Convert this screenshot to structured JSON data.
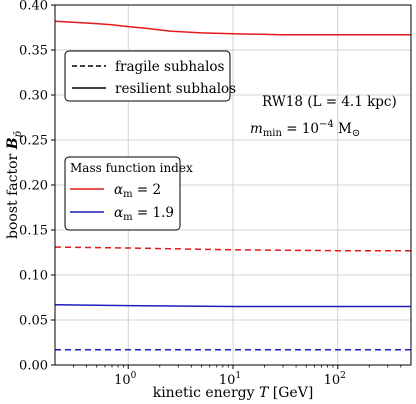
{
  "chart_data": {
    "type": "line",
    "xscale": "log",
    "xlim": [
      0.2,
      500
    ],
    "ylim": [
      0.0,
      0.4
    ],
    "xlabel": "kinetic energy T [GeV]",
    "ylabel": "boost factor B_p̄",
    "grid": true,
    "x_ticks": [
      {
        "value": 1,
        "base": "10",
        "exp": "0"
      },
      {
        "value": 10,
        "base": "10",
        "exp": "1"
      },
      {
        "value": 100,
        "base": "10",
        "exp": "2"
      }
    ],
    "y_ticks": [
      "0.00",
      "0.05",
      "0.10",
      "0.15",
      "0.20",
      "0.25",
      "0.30",
      "0.35",
      "0.40"
    ],
    "annotations": [
      {
        "text": "RW18 (L = 4.1 kpc)"
      },
      {
        "text_main": "m",
        "text_sub": "min",
        "text_eq": " = 10",
        "text_exp": "−4",
        "text_unit": " M",
        "text_unit_sub": "⊙"
      }
    ],
    "legend_style": {
      "placement": "upper-left",
      "entries": [
        {
          "label": "fragile subhalos",
          "dash": "dashed"
        },
        {
          "label": "resilient subhalos",
          "dash": "solid"
        }
      ]
    },
    "legend_alpha": {
      "title": "Mass function index",
      "placement": "center-left",
      "entries": [
        {
          "symbol": "α",
          "sub": "m",
          "eq": " = 2",
          "color": "#e31a1c"
        },
        {
          "symbol": "α",
          "sub": "m",
          "eq": " = 1.9",
          "color": "#1f1fbf"
        }
      ]
    },
    "series": [
      {
        "alpha": "2",
        "style": "solid",
        "color": "#e31a1c",
        "x": [
          0.2,
          0.4,
          0.7,
          1.0,
          1.5,
          2.5,
          5,
          10,
          30,
          100,
          500
        ],
        "y": [
          0.382,
          0.38,
          0.378,
          0.376,
          0.374,
          0.371,
          0.369,
          0.368,
          0.367,
          0.367,
          0.367
        ]
      },
      {
        "alpha": "2",
        "style": "dashed",
        "color": "#e31a1c",
        "x": [
          0.2,
          1,
          10,
          100,
          500
        ],
        "y": [
          0.131,
          0.13,
          0.128,
          0.127,
          0.127
        ]
      },
      {
        "alpha": "1.9",
        "style": "solid",
        "color": "#1f1fbf",
        "x": [
          0.2,
          1,
          10,
          100,
          500
        ],
        "y": [
          0.067,
          0.066,
          0.065,
          0.065,
          0.065
        ]
      },
      {
        "alpha": "1.9",
        "style": "dashed",
        "color": "#1f1fbf",
        "x": [
          0.2,
          1,
          10,
          100,
          500
        ],
        "y": [
          0.017,
          0.017,
          0.017,
          0.017,
          0.017
        ]
      }
    ]
  }
}
